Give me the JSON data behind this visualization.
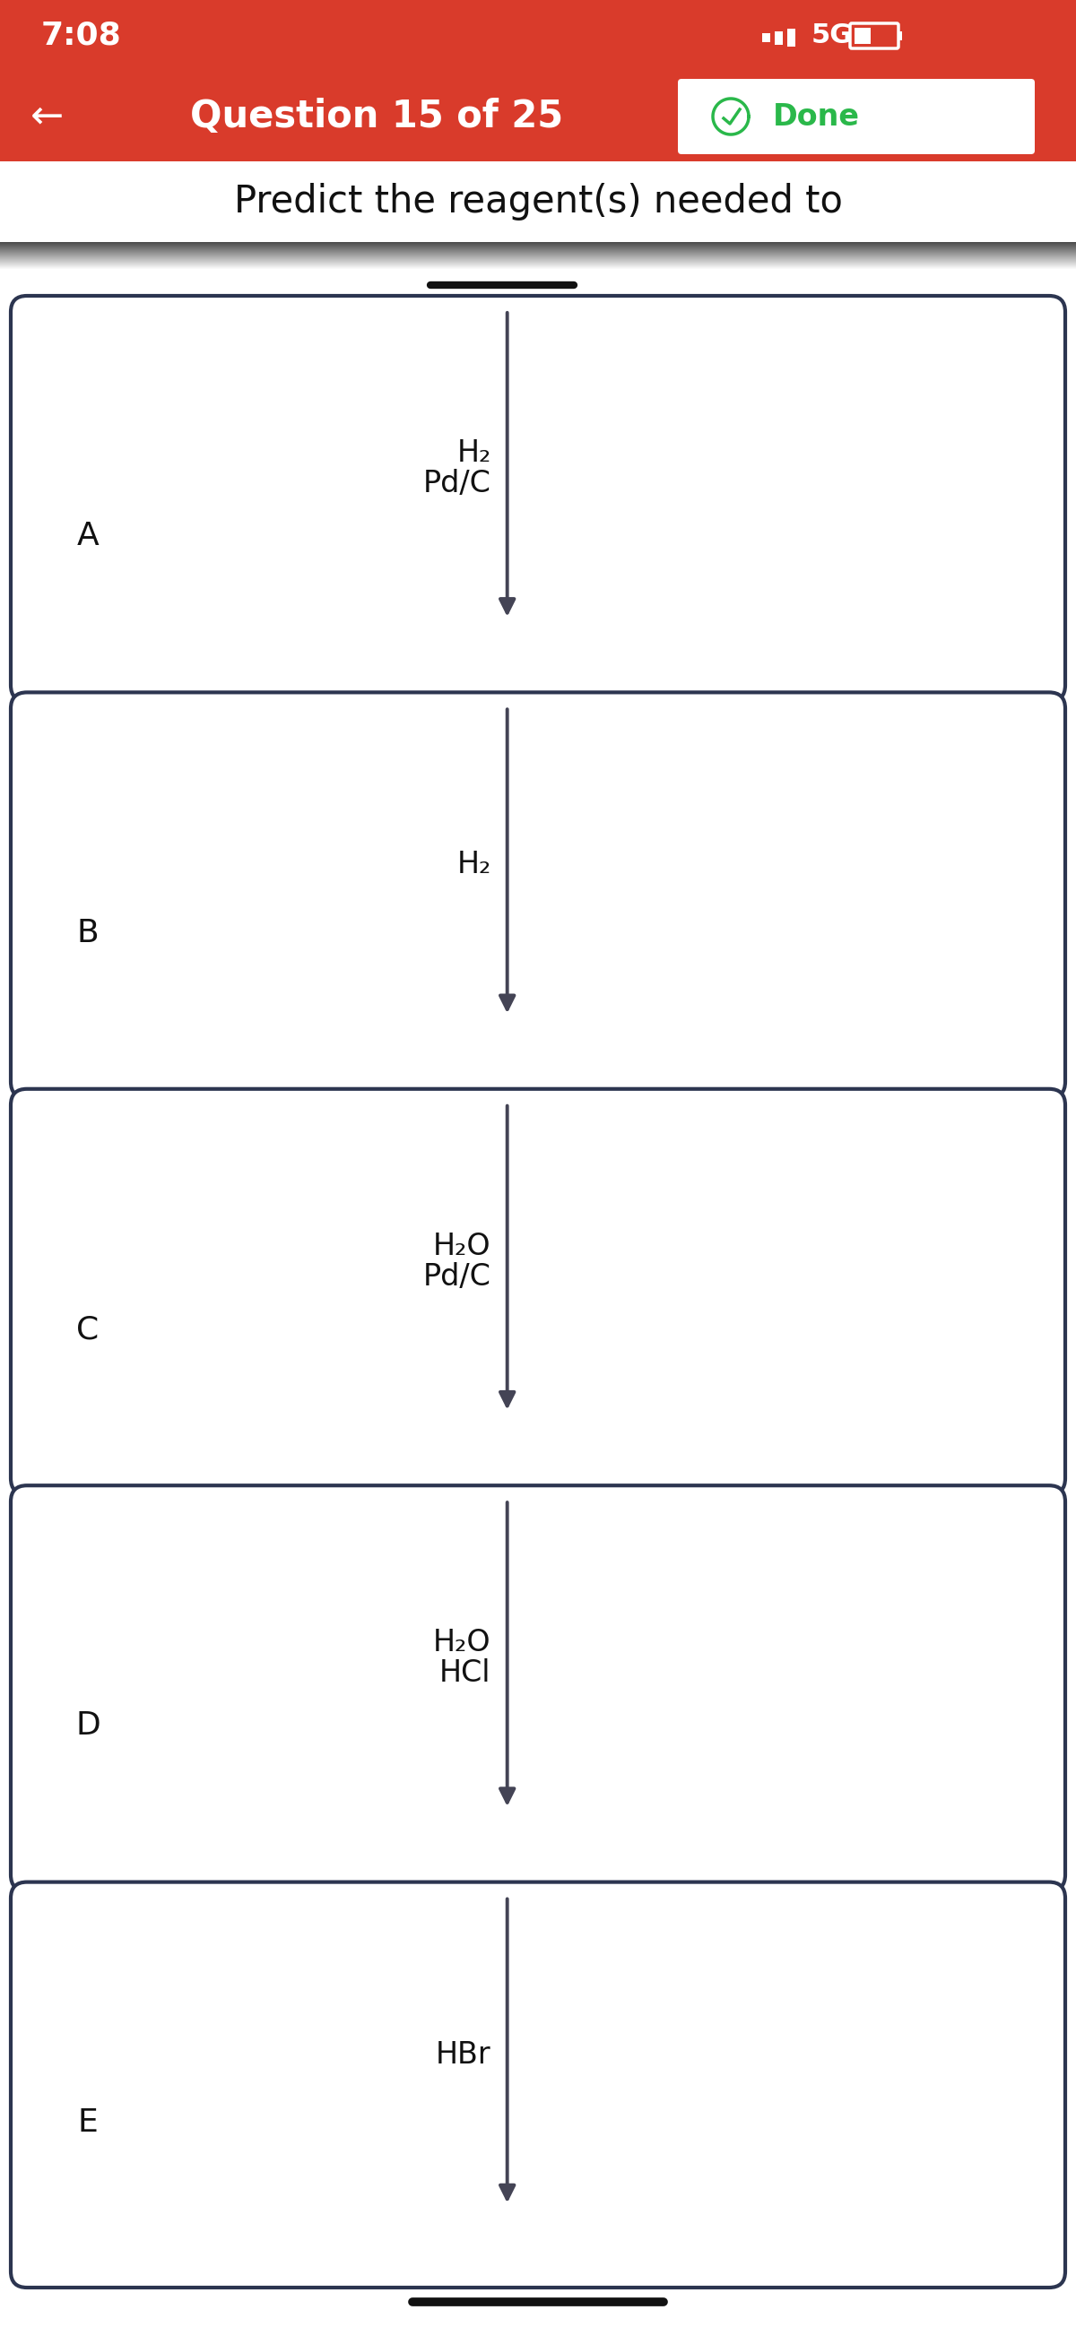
{
  "red_color": "#D93B2B",
  "background_color": "#FFFFFF",
  "body_bg_color": "#F0F0F0",
  "time_text": "7:08",
  "signal_text": "5G",
  "nav_title": "Question 15 of 25",
  "done_button_text": "Done",
  "subtitle": "Predict the reagent(s) needed to",
  "boxes": [
    {
      "label": "A",
      "reagents": [
        "H₂",
        "Pd/C"
      ]
    },
    {
      "label": "B",
      "reagents": [
        "H₂"
      ]
    },
    {
      "label": "C",
      "reagents": [
        "H₂O",
        "Pd/C"
      ]
    },
    {
      "label": "D",
      "reagents": [
        "H₂O",
        "HCl"
      ]
    },
    {
      "label": "E",
      "reagents": [
        "HBr"
      ]
    }
  ],
  "box_border_color": "#2C3550",
  "arrow_color": "#444455",
  "text_color": "#111111",
  "label_fontsize": 26,
  "reagent_fontsize": 24,
  "subtitle_fontsize": 30,
  "nav_fontsize": 30,
  "time_fontsize": 26,
  "done_button_color": "#2ab84a",
  "bottom_bar_color": "#111111",
  "header_shadow_color": "#333333"
}
